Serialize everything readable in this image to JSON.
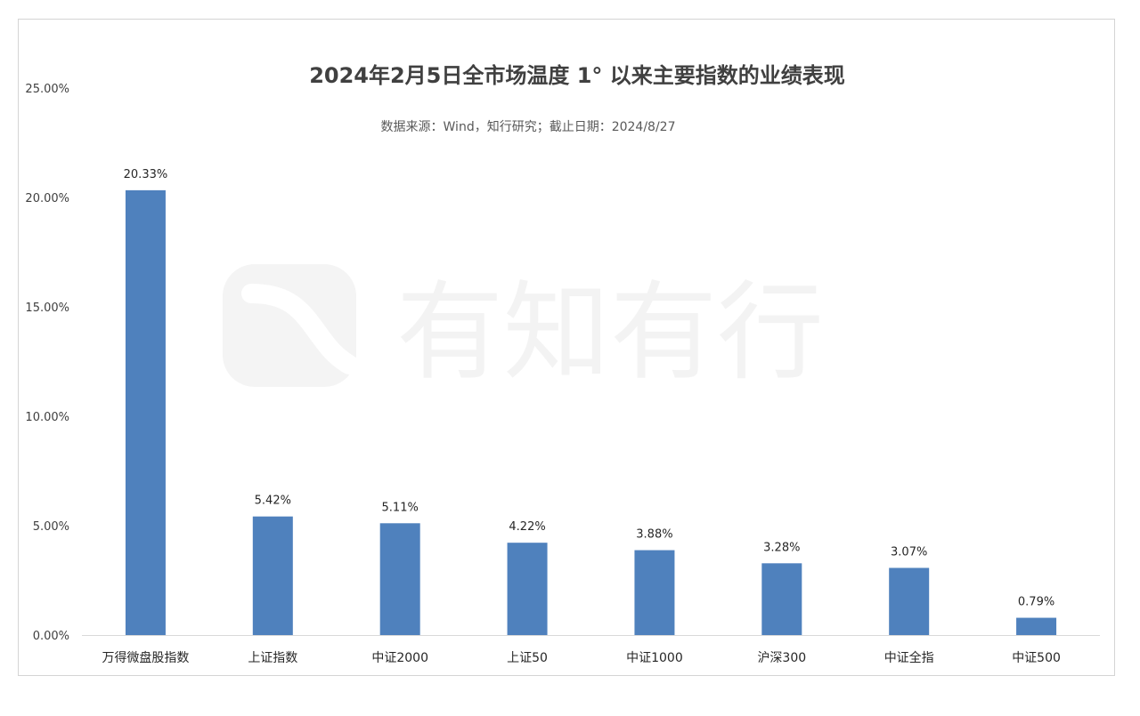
{
  "chart_data": {
    "type": "bar",
    "title": "2024年2月5日全市场温度 1° 以来主要指数的业绩表现",
    "subtitle": "数据来源：Wind，知行研究；截止日期：2024/8/27",
    "categories": [
      "万得微盘股指数",
      "上证指数",
      "中证2000",
      "上证50",
      "中证1000",
      "沪深300",
      "中证全指",
      "中证500"
    ],
    "values": [
      20.33,
      5.42,
      5.11,
      4.22,
      3.88,
      3.28,
      3.07,
      0.79
    ],
    "data_labels": [
      "20.33%",
      "5.42%",
      "5.11%",
      "4.22%",
      "3.88%",
      "3.28%",
      "3.07%",
      "0.79%"
    ],
    "yticks": [
      "0.00%",
      "5.00%",
      "10.00%",
      "15.00%",
      "20.00%",
      "25.00%"
    ],
    "ylim": [
      0,
      25
    ],
    "xlabel": "",
    "ylabel": "",
    "grid": false,
    "bar_color": "#4f81bd",
    "watermark": "有知有行"
  }
}
